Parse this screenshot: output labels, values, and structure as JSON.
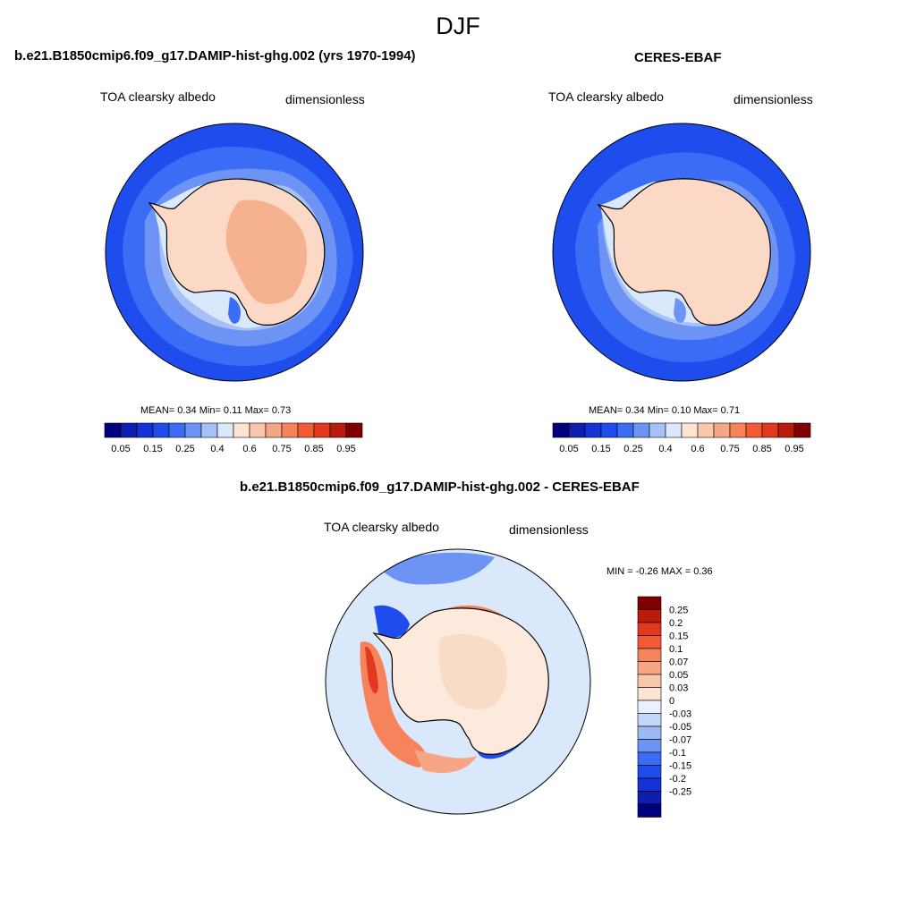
{
  "figure": {
    "title": "DJF"
  },
  "panels": [
    {
      "id": "model",
      "title": "b.e21.B1850cmip6.f09_g17.DAMIP-hist-ghg.002 (yrs 1970-1994)",
      "variable": "TOA clearsky albedo",
      "units": "dimensionless",
      "stats": "MEAN=   0.34  Min=    0.11  Max=    0.73"
    },
    {
      "id": "obs",
      "title": "CERES-EBAF",
      "variable": "TOA clearsky albedo",
      "units": "dimensionless",
      "stats": "MEAN=   0.34  Min=    0.10  Max=    0.71"
    },
    {
      "id": "diff",
      "title": "b.e21.B1850cmip6.f09_g17.DAMIP-hist-ghg.002 - CERES-EBAF",
      "variable": "TOA clearsky albedo",
      "units": "dimensionless",
      "stats": "MIN =  -0.26 MAX =   0.36"
    }
  ],
  "colorbar_abs": {
    "colors": [
      "#00007f",
      "#0e1cb0",
      "#1532d6",
      "#1f4ded",
      "#3b6cf5",
      "#6d93f4",
      "#a6c1f7",
      "#d9e8fb",
      "#fde4d3",
      "#f9c7ad",
      "#f6a683",
      "#f6835c",
      "#f25b34",
      "#e0391d",
      "#b91b0d",
      "#7f0000"
    ],
    "labels": [
      "0.05",
      "0.15",
      "0.25",
      "0.4",
      "0.6",
      "0.75",
      "0.85",
      "0.95"
    ]
  },
  "colorbar_diff": {
    "colors": [
      "#7f0000",
      "#b91b0d",
      "#e0391d",
      "#f25b34",
      "#f6835c",
      "#f6a683",
      "#f9c7ad",
      "#fde4d3",
      "#e8f1fd",
      "#c3d7f7",
      "#9bb9f3",
      "#6d93f4",
      "#3b6cf5",
      "#1f4ded",
      "#1532d6",
      "#0e1cb0",
      "#00007f"
    ],
    "labels": [
      "0.25",
      "0.2",
      "0.15",
      "0.1",
      "0.07",
      "0.05",
      "0.03",
      "0",
      "-0.03",
      "-0.05",
      "-0.07",
      "-0.1",
      "-0.15",
      "-0.2",
      "-0.25"
    ]
  }
}
